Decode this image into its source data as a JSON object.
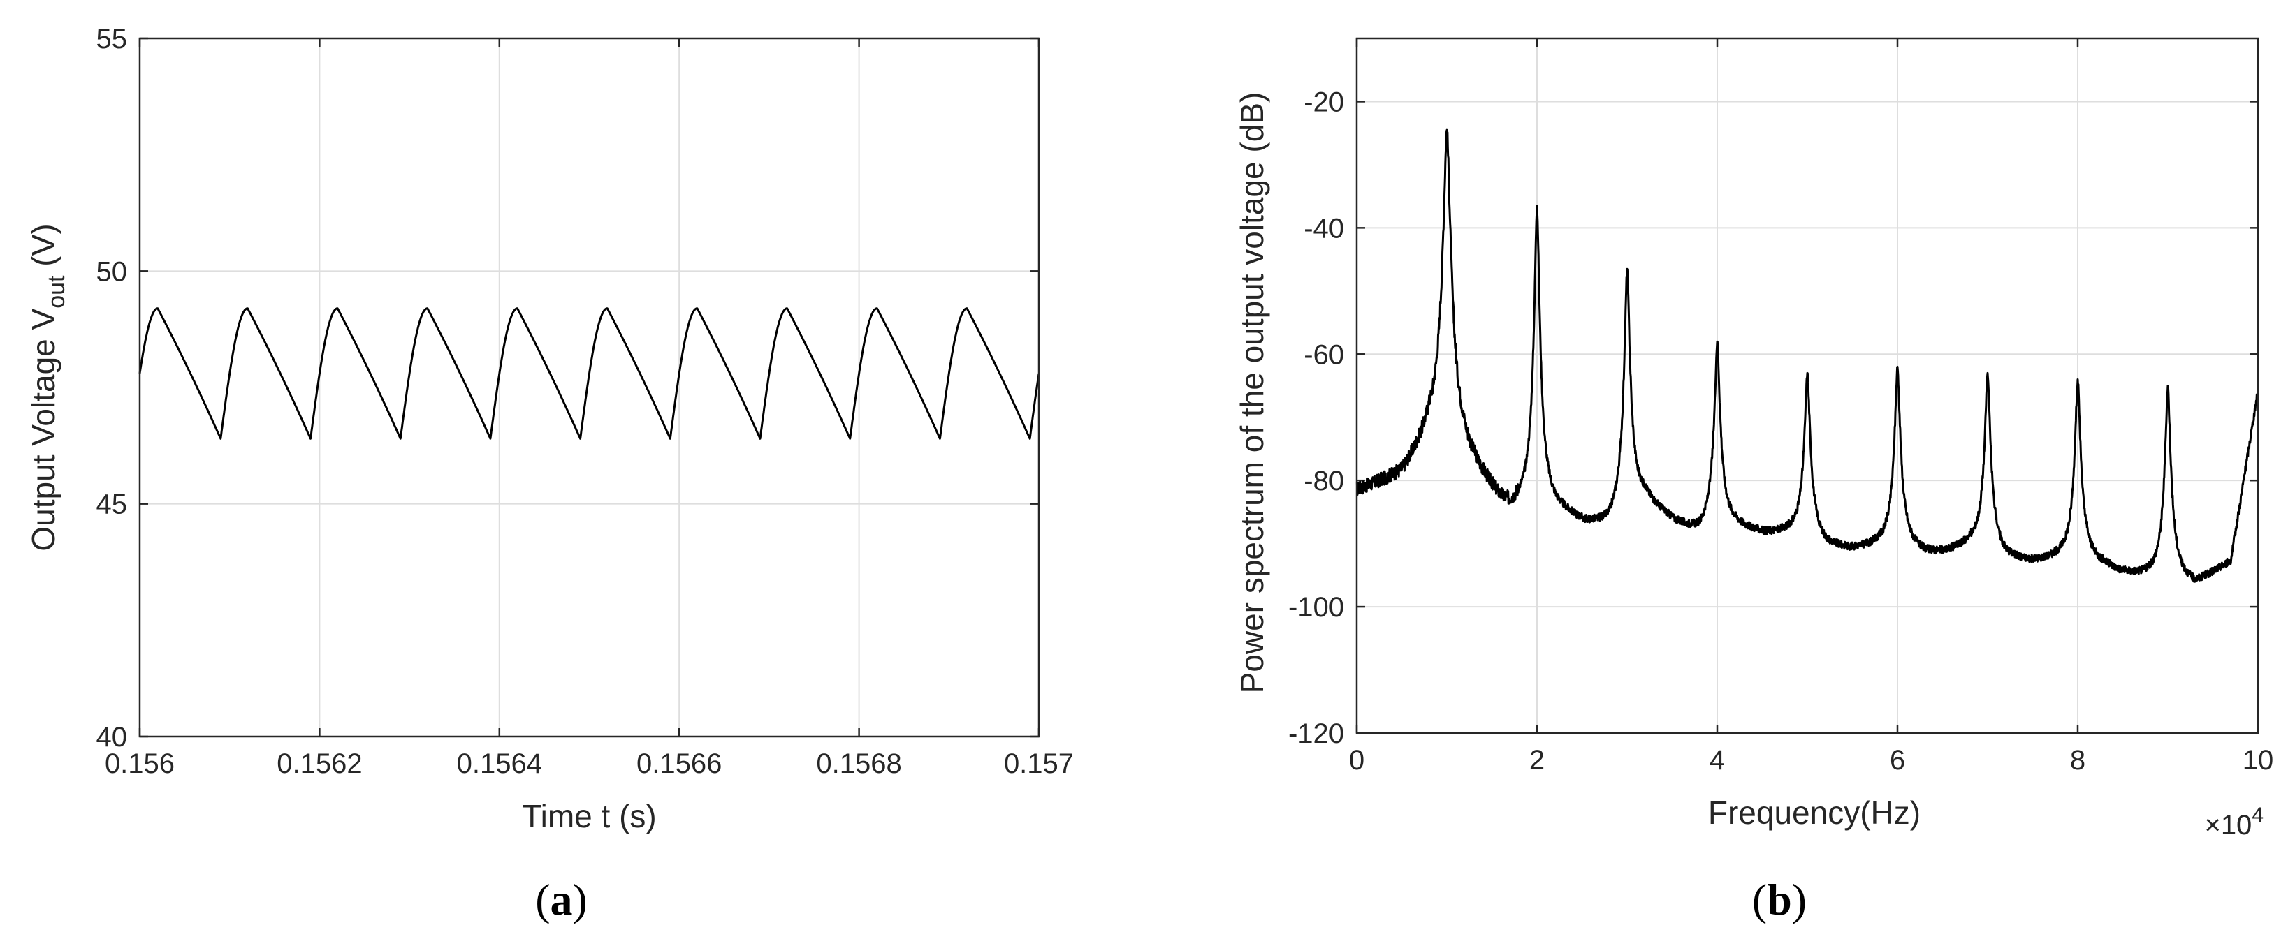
{
  "chart_data": [
    {
      "type": "line",
      "panel_label": "(a)",
      "xlabel": "Time t (s)",
      "ylabel": "Output Voltage V",
      "ylabel_subscript": "out",
      "ylabel_unit": " (V)",
      "xlim": [
        0.156,
        0.157
      ],
      "ylim": [
        40,
        55
      ],
      "xticks": [
        0.156,
        0.1562,
        0.1564,
        0.1566,
        0.1568,
        0.157
      ],
      "xtick_labels": [
        "0.156",
        "0.1562",
        "0.1564",
        "0.1566",
        "0.1568",
        "0.157"
      ],
      "yticks": [
        40,
        45,
        50,
        55
      ],
      "ytick_labels": [
        "40",
        "45",
        "50",
        "55"
      ],
      "grid": true,
      "series": [
        {
          "waveform": "periodic ripple",
          "period": 0.0001,
          "max": 49.2,
          "min": 46.4,
          "peak_times": [
            0.15603,
            0.15613,
            0.15623,
            0.15633,
            0.15643,
            0.15653,
            0.15663,
            0.15673,
            0.15683,
            0.15693
          ],
          "trough_times": [
            0.15609,
            0.15619,
            0.15629,
            0.15639,
            0.15649,
            0.15659,
            0.15669,
            0.15679,
            0.15689,
            0.15699
          ],
          "start_value": 47.6,
          "end_value": 47.6
        }
      ]
    },
    {
      "type": "line",
      "panel_label": "(b)",
      "xlabel": "Frequency(Hz)",
      "ylabel": "Power spectrum of the output voltage (dB)",
      "x_multiplier": "×10",
      "x_multiplier_exp": "4",
      "xlim": [
        0,
        10
      ],
      "ylim": [
        -120,
        -10
      ],
      "xticks": [
        0,
        2,
        4,
        6,
        8,
        10
      ],
      "xtick_labels": [
        "0",
        "2",
        "4",
        "6",
        "8",
        "10"
      ],
      "yticks": [
        -120,
        -100,
        -80,
        -60,
        -40,
        -20
      ],
      "ytick_labels": [
        "-120",
        "-100",
        "-80",
        "-60",
        "-40",
        "-20"
      ],
      "grid": true,
      "series": [
        {
          "peaks_x": [
            1,
            2,
            3,
            4,
            5,
            6,
            7,
            8,
            9
          ],
          "peaks_db": [
            -24.5,
            -36.5,
            -46.5,
            -58,
            -63,
            -62,
            -63,
            -64,
            -65
          ],
          "baseline_x": [
            0,
            0.5,
            0.8,
            1.2,
            1.7,
            2.3,
            2.8,
            3.2,
            3.8,
            4.2,
            4.8,
            5.2,
            5.8,
            6.3,
            6.8,
            7.2,
            7.8,
            8.3,
            8.8,
            9.3,
            9.7,
            10
          ],
          "baseline_db": [
            -82,
            -80,
            -75,
            -78,
            -85,
            -86,
            -88,
            -84,
            -89,
            -88,
            -89,
            -91,
            -91,
            -92,
            -91,
            -93,
            -93,
            -94,
            -96,
            -97,
            -93,
            -66
          ]
        }
      ]
    }
  ]
}
